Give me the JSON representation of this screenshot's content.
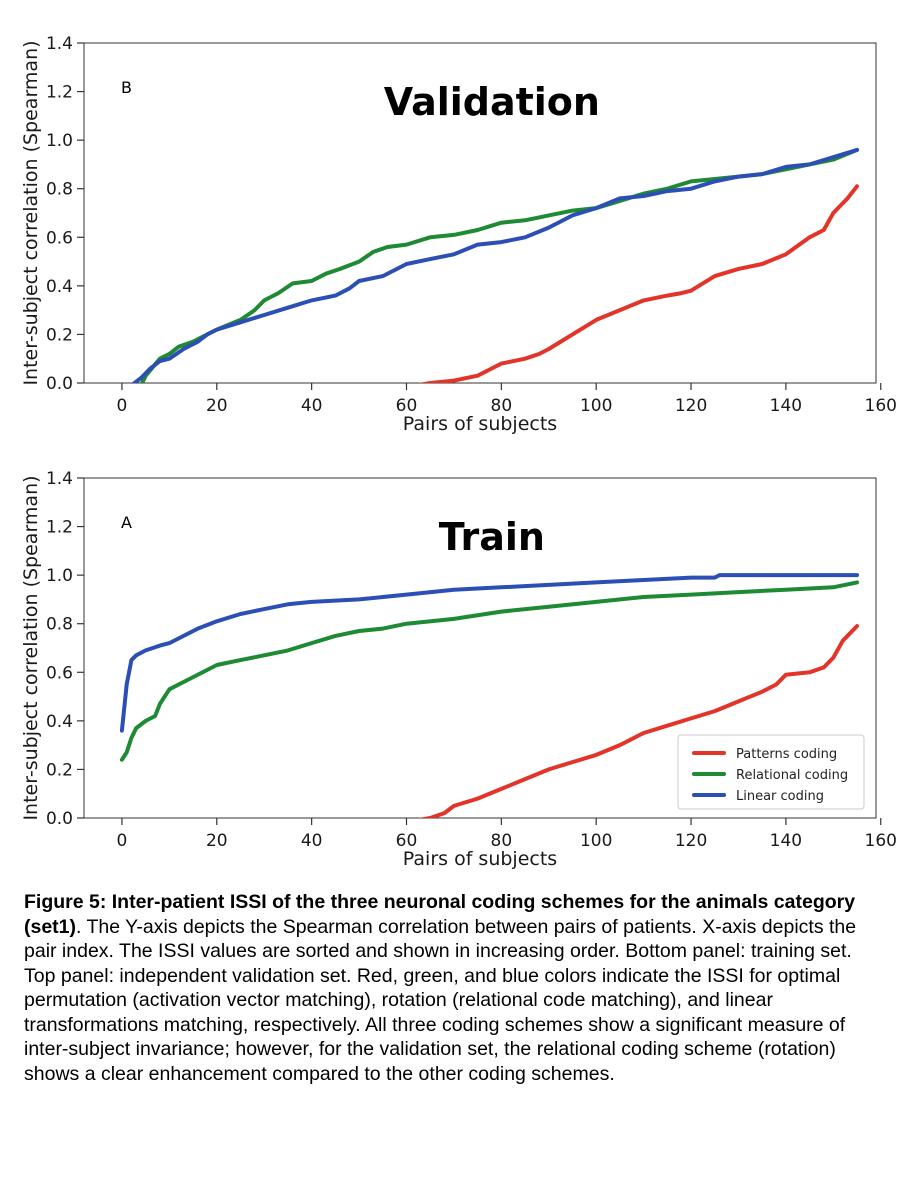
{
  "chart_data": [
    {
      "type": "line",
      "panel": "top",
      "letter": "B",
      "title": "Validation",
      "xlabel": "Pairs of subjects",
      "ylabel": "Inter-subject correlation (Spearman)",
      "xlim": [
        -8,
        159
      ],
      "ylim": [
        0,
        1.4
      ],
      "xticks": [
        0,
        20,
        40,
        60,
        80,
        100,
        120,
        140,
        160
      ],
      "yticks": [
        "0.0",
        "0.2",
        "0.4",
        "0.6",
        "0.8",
        "1.0",
        "1.2",
        "1.4"
      ],
      "series": [
        {
          "name": "Patterns coding",
          "color": "#e3342a",
          "x": [
            62,
            65,
            70,
            75,
            78,
            80,
            85,
            88,
            90,
            95,
            100,
            105,
            110,
            115,
            118,
            120,
            125,
            130,
            135,
            140,
            145,
            148,
            150,
            153,
            155
          ],
          "y": [
            -0.01,
            0.0,
            0.01,
            0.03,
            0.06,
            0.08,
            0.1,
            0.12,
            0.14,
            0.2,
            0.26,
            0.3,
            0.34,
            0.36,
            0.37,
            0.38,
            0.44,
            0.47,
            0.49,
            0.53,
            0.6,
            0.63,
            0.7,
            0.76,
            0.81
          ]
        },
        {
          "name": "Relational coding",
          "color": "#1e8a33",
          "x": [
            4,
            5,
            8,
            10,
            12,
            15,
            18,
            20,
            25,
            28,
            30,
            33,
            36,
            40,
            43,
            46,
            50,
            53,
            56,
            60,
            65,
            70,
            75,
            80,
            85,
            90,
            95,
            100,
            105,
            110,
            115,
            120,
            125,
            130,
            135,
            140,
            145,
            150,
            155
          ],
          "y": [
            -0.01,
            0.03,
            0.1,
            0.12,
            0.15,
            0.17,
            0.2,
            0.22,
            0.26,
            0.3,
            0.34,
            0.37,
            0.41,
            0.42,
            0.45,
            0.47,
            0.5,
            0.54,
            0.56,
            0.57,
            0.6,
            0.61,
            0.63,
            0.66,
            0.67,
            0.69,
            0.71,
            0.72,
            0.75,
            0.78,
            0.8,
            0.83,
            0.84,
            0.85,
            0.86,
            0.88,
            0.9,
            0.92,
            0.96
          ]
        },
        {
          "name": "Linear coding",
          "color": "#2b4fb4",
          "x": [
            2,
            4,
            6,
            8,
            10,
            13,
            16,
            18,
            20,
            25,
            30,
            35,
            40,
            45,
            48,
            50,
            55,
            58,
            60,
            65,
            70,
            75,
            80,
            85,
            90,
            95,
            100,
            105,
            110,
            115,
            120,
            125,
            130,
            135,
            140,
            145,
            150,
            155
          ],
          "y": [
            -0.01,
            0.02,
            0.06,
            0.09,
            0.1,
            0.14,
            0.17,
            0.2,
            0.22,
            0.25,
            0.28,
            0.31,
            0.34,
            0.36,
            0.39,
            0.42,
            0.44,
            0.47,
            0.49,
            0.51,
            0.53,
            0.57,
            0.58,
            0.6,
            0.64,
            0.69,
            0.72,
            0.76,
            0.77,
            0.79,
            0.8,
            0.83,
            0.85,
            0.86,
            0.89,
            0.9,
            0.93,
            0.96
          ]
        }
      ]
    },
    {
      "type": "line",
      "panel": "bottom",
      "letter": "A",
      "title": "Train",
      "xlabel": "Pairs of subjects",
      "ylabel": "Inter-subject correlation (Spearman)",
      "xlim": [
        -8,
        159
      ],
      "ylim": [
        0,
        1.4
      ],
      "xticks": [
        0,
        20,
        40,
        60,
        80,
        100,
        120,
        140,
        160
      ],
      "yticks": [
        "0.0",
        "0.2",
        "0.4",
        "0.6",
        "0.8",
        "1.0",
        "1.2",
        "1.4"
      ],
      "legend": {
        "location": "lower right",
        "entries": [
          "Patterns coding",
          "Relational coding",
          "Linear coding"
        ]
      },
      "series": [
        {
          "name": "Patterns coding",
          "color": "#e3342a",
          "x": [
            62,
            65,
            68,
            70,
            75,
            80,
            85,
            90,
            95,
            100,
            105,
            110,
            115,
            120,
            125,
            130,
            135,
            138,
            140,
            145,
            148,
            150,
            152,
            155
          ],
          "y": [
            -0.01,
            0.0,
            0.02,
            0.05,
            0.08,
            0.12,
            0.16,
            0.2,
            0.23,
            0.26,
            0.3,
            0.35,
            0.38,
            0.41,
            0.44,
            0.48,
            0.52,
            0.55,
            0.59,
            0.6,
            0.62,
            0.66,
            0.73,
            0.79
          ]
        },
        {
          "name": "Relational coding",
          "color": "#1e8a33",
          "x": [
            0,
            1,
            2,
            3,
            5,
            7,
            8,
            10,
            12,
            15,
            18,
            20,
            25,
            30,
            35,
            40,
            45,
            50,
            55,
            60,
            70,
            80,
            90,
            100,
            110,
            120,
            130,
            140,
            150,
            155
          ],
          "y": [
            0.24,
            0.27,
            0.33,
            0.37,
            0.4,
            0.42,
            0.47,
            0.53,
            0.55,
            0.58,
            0.61,
            0.63,
            0.65,
            0.67,
            0.69,
            0.72,
            0.75,
            0.77,
            0.78,
            0.8,
            0.82,
            0.85,
            0.87,
            0.89,
            0.91,
            0.92,
            0.93,
            0.94,
            0.95,
            0.97
          ]
        },
        {
          "name": "Linear coding",
          "color": "#2b4fb4",
          "x": [
            0,
            1,
            2,
            3,
            5,
            8,
            10,
            13,
            16,
            20,
            25,
            30,
            35,
            40,
            50,
            60,
            70,
            80,
            90,
            100,
            110,
            120,
            125,
            126,
            140,
            155
          ],
          "y": [
            0.36,
            0.55,
            0.65,
            0.67,
            0.69,
            0.71,
            0.72,
            0.75,
            0.78,
            0.81,
            0.84,
            0.86,
            0.88,
            0.89,
            0.9,
            0.92,
            0.94,
            0.95,
            0.96,
            0.97,
            0.98,
            0.99,
            0.99,
            1.0,
            1.0,
            1.0
          ]
        }
      ]
    }
  ],
  "caption": {
    "bold": "Figure 5: Inter-patient ISSI of the three neuronal coding schemes for the animals category (set1)",
    "text": ". The Y-axis depicts the Spearman correlation between pairs of patients. X-axis depicts the pair index. The ISSI values are sorted and shown in increasing order. Bottom panel: training set. Top panel: independent validation set. Red, green, and blue colors indicate the ISSI for optimal permutation (activation vector matching), rotation (relational code matching), and linear transformations matching, respectively. All three coding schemes show a significant measure of inter-subject invariance; however, for the validation set, the relational coding scheme (rotation) shows a clear enhancement compared to the other coding schemes."
  }
}
